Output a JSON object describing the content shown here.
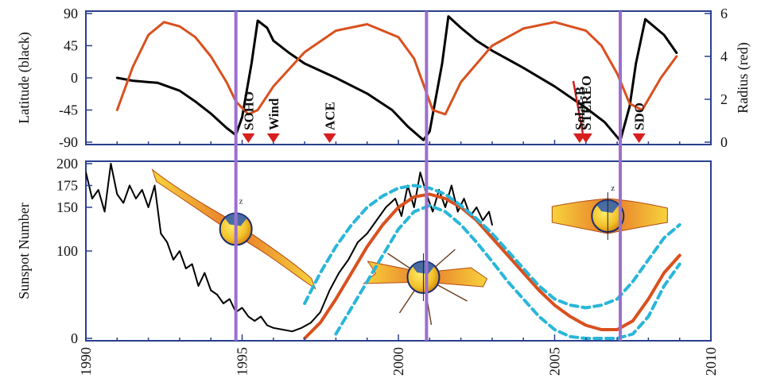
{
  "chart_data": [
    {
      "type": "line",
      "panel": "top",
      "ylabel_left": "Latitude (black)",
      "ylabel_right": "Radius (red)",
      "xlim": [
        1990,
        2010
      ],
      "ylim_left": [
        -90,
        90
      ],
      "ylim_right": [
        0,
        6
      ],
      "yticks_left": [
        "90",
        "45",
        "0",
        "-45",
        "-90"
      ],
      "yticks_right": [
        "6",
        "4",
        "2",
        "0"
      ],
      "grid": false,
      "series": [
        {
          "color": "#000000",
          "axis": "left",
          "x": [
            1991.0,
            1991.5,
            1992.0,
            1992.3,
            1993.0,
            1993.5,
            1994.0,
            1994.5,
            1994.8,
            1995.0,
            1995.3,
            1995.5,
            1995.8,
            1996.0,
            1996.5,
            1997.0,
            1998.0,
            1999.0,
            1999.8,
            2000.3,
            2000.8,
            2001.0,
            2001.4,
            2001.6,
            2002.0,
            2002.5,
            2003.0,
            2004.0,
            2005.0,
            2006.0,
            2006.6,
            2007.1,
            2007.4,
            2007.6,
            2007.9,
            2008.5,
            2008.9
          ],
          "y": [
            0,
            -4,
            -6,
            -7,
            -18,
            -33,
            -50,
            -70,
            -80,
            -55,
            20,
            80,
            70,
            52,
            35,
            20,
            0,
            -22,
            -45,
            -68,
            -87,
            -75,
            20,
            86,
            70,
            52,
            38,
            14,
            -12,
            -42,
            -62,
            -88,
            -40,
            20,
            82,
            60,
            35
          ]
        },
        {
          "color": "#d9501e",
          "axis": "right",
          "x": [
            1991.0,
            1991.5,
            1992.0,
            1992.5,
            1993.0,
            1993.5,
            1994.0,
            1994.5,
            1994.8,
            1995.2,
            1995.5,
            1996.0,
            1997.0,
            1998.0,
            1999.0,
            2000.0,
            2000.5,
            2001.1,
            2001.5,
            2002.0,
            2003.0,
            2004.0,
            2005.0,
            2006.0,
            2006.5,
            2007.0,
            2007.4,
            2007.8,
            2008.4,
            2008.9
          ],
          "y": [
            1.5,
            3.5,
            5.0,
            5.6,
            5.4,
            4.9,
            4.0,
            2.8,
            1.9,
            1.3,
            1.5,
            2.6,
            4.2,
            5.2,
            5.5,
            4.9,
            3.9,
            1.5,
            1.3,
            2.8,
            4.5,
            5.3,
            5.6,
            5.2,
            4.5,
            3.2,
            1.8,
            1.5,
            3.0,
            4.0
          ]
        }
      ],
      "missions": [
        {
          "label": "SOHO",
          "x": 1995.2
        },
        {
          "label": "Wind",
          "x": 1996.0
        },
        {
          "label": "ACE",
          "x": 1997.8
        },
        {
          "label": "Solar-B",
          "x": 2005.8
        },
        {
          "label": "STEREO",
          "x": 2006.0
        },
        {
          "label": "SDO",
          "x": 2007.7
        }
      ],
      "vertical_lines": [
        1994.8,
        2000.9,
        2007.1
      ],
      "vertical_line_color": "#9b6fd0",
      "marker_color": "#d81e1e"
    },
    {
      "type": "line",
      "panel": "bottom",
      "ylabel": "Sunspot Number",
      "xlim": [
        1990,
        2010
      ],
      "ylim": [
        0,
        200
      ],
      "yticks": [
        "200",
        "175",
        "150",
        "100",
        "0"
      ],
      "xticks": [
        "1990",
        "1995",
        "2000",
        "2005",
        "2010"
      ],
      "grid": false,
      "series": [
        {
          "color": "#000000",
          "x": [
            1990.0,
            1990.2,
            1990.4,
            1990.6,
            1990.8,
            1991.0,
            1991.2,
            1991.4,
            1991.6,
            1991.8,
            1992.0,
            1992.2,
            1992.4,
            1992.6,
            1992.8,
            1993.0,
            1993.2,
            1993.4,
            1993.6,
            1993.8,
            1994.0,
            1994.2,
            1994.4,
            1994.6,
            1994.8,
            1995.0,
            1995.2,
            1995.4,
            1995.6,
            1995.8,
            1996.0,
            1996.3,
            1996.6,
            1996.9,
            1997.2,
            1997.5,
            1997.8,
            1998.1,
            1998.4,
            1998.7,
            1999.0,
            1999.3,
            1999.6,
            1999.9,
            2000.1,
            2000.3,
            2000.5,
            2000.7,
            2000.9,
            2001.1,
            2001.3,
            2001.5,
            2001.7,
            2001.9,
            2002.1,
            2002.3,
            2002.5,
            2002.7,
            2002.9,
            2003.0
          ],
          "y": [
            190,
            160,
            170,
            145,
            200,
            165,
            155,
            175,
            160,
            170,
            150,
            175,
            120,
            110,
            90,
            100,
            80,
            85,
            60,
            75,
            55,
            50,
            40,
            45,
            30,
            35,
            25,
            20,
            25,
            15,
            12,
            10,
            8,
            12,
            18,
            30,
            55,
            75,
            90,
            110,
            120,
            135,
            150,
            160,
            140,
            175,
            150,
            190,
            165,
            145,
            170,
            150,
            175,
            145,
            160,
            140,
            150,
            135,
            145,
            130
          ]
        },
        {
          "color": "#d9501e",
          "x": [
            1997.0,
            1997.5,
            1998.0,
            1998.5,
            1999.0,
            1999.5,
            2000.0,
            2000.5,
            2001.0,
            2001.5,
            2002.0,
            2002.5,
            2003.0,
            2003.5,
            2004.0,
            2004.5,
            2005.0,
            2005.5,
            2006.0,
            2006.5,
            2007.0,
            2007.5,
            2008.0,
            2008.5,
            2009.0
          ],
          "y": [
            0,
            18,
            45,
            75,
            105,
            130,
            150,
            162,
            165,
            160,
            150,
            135,
            115,
            95,
            75,
            55,
            38,
            25,
            15,
            10,
            10,
            20,
            45,
            75,
            95
          ]
        },
        {
          "color": "#29b6d9",
          "dashed": true,
          "x": [
            1997.0,
            1997.5,
            1998.0,
            1998.5,
            1999.0,
            1999.5,
            2000.0,
            2000.5,
            2001.0,
            2001.5,
            2002.0,
            2002.5,
            2003.0,
            2003.5,
            2004.0,
            2004.5,
            2005.0,
            2005.5,
            2006.0,
            2006.5,
            2007.0,
            2007.5,
            2008.0,
            2008.5,
            2009.0
          ],
          "y": [
            40,
            75,
            105,
            130,
            150,
            163,
            172,
            175,
            172,
            165,
            152,
            137,
            120,
            100,
            80,
            60,
            45,
            38,
            35,
            38,
            45,
            65,
            90,
            115,
            130
          ]
        },
        {
          "color": "#29b6d9",
          "dashed": true,
          "x": [
            1998.0,
            1998.5,
            1999.0,
            1999.5,
            2000.0,
            2000.5,
            2001.0,
            2001.5,
            2002.0,
            2002.5,
            2003.0,
            2003.5,
            2004.0,
            2004.5,
            2005.0,
            2005.5,
            2006.0,
            2006.5,
            2007.0,
            2007.5,
            2008.0,
            2008.5,
            2009.0
          ],
          "y": [
            5,
            35,
            65,
            95,
            125,
            145,
            152,
            145,
            130,
            110,
            88,
            65,
            45,
            25,
            10,
            2,
            0,
            0,
            0,
            5,
            25,
            60,
            85
          ]
        }
      ],
      "vertical_lines": [
        1994.8,
        2000.9,
        2007.1
      ],
      "vertical_line_color": "#9b6fd0",
      "insets": [
        {
          "x": 1994.8,
          "y": 125,
          "label": "z",
          "style": "tilted"
        },
        {
          "x": 2000.8,
          "y": 70,
          "label": "",
          "style": "spiky"
        },
        {
          "x": 2006.7,
          "y": 140,
          "label": "z",
          "style": "flat"
        }
      ]
    }
  ]
}
